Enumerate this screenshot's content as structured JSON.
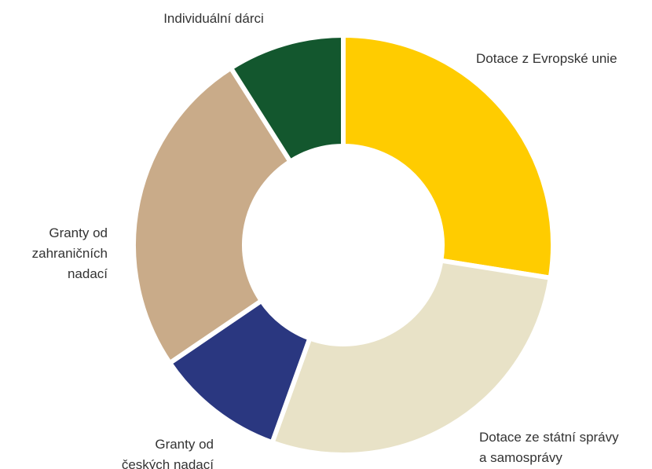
{
  "chart_data": {
    "type": "pie",
    "variant": "donut",
    "title": "",
    "grid": false,
    "legend": "none",
    "slices": [
      {
        "label_lines": [
          "Dotace z Evropské unie"
        ],
        "value": 27.5,
        "color": "#FFCC00"
      },
      {
        "label_lines": [
          "Dotace ze státní správy",
          "a samosprávy"
        ],
        "value": 28.0,
        "color": "#E8E2C7"
      },
      {
        "label_lines": [
          "Granty od",
          "českých nadací"
        ],
        "value": 10.0,
        "color": "#2A3780"
      },
      {
        "label_lines": [
          "Granty od",
          "zahraničních",
          "nadací"
        ],
        "value": 25.5,
        "color": "#C9AB89"
      },
      {
        "label_lines": [
          "Individuální dárci"
        ],
        "value": 9.0,
        "color": "#13572E"
      }
    ]
  }
}
